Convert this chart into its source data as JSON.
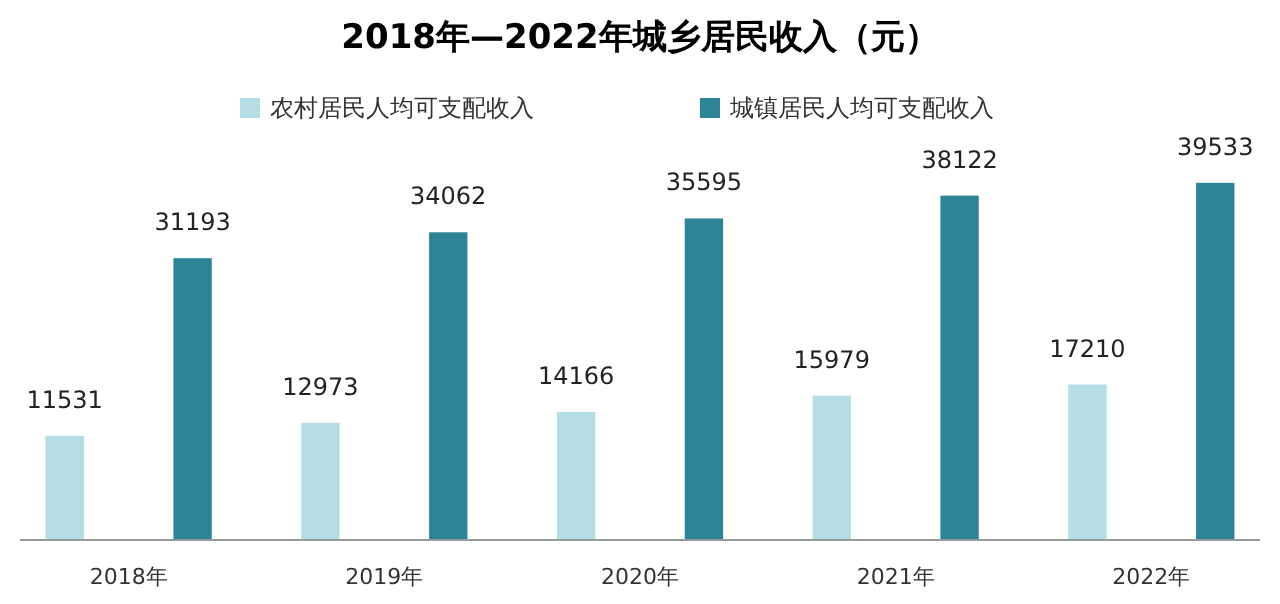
{
  "chart_data": {
    "type": "bar",
    "title": "2018年—2022年城乡居民收入（元）",
    "categories": [
      "2018年",
      "2019年",
      "2020年",
      "2021年",
      "2022年"
    ],
    "series": [
      {
        "name": "农村居民人均可支配收入",
        "color": "#b4dde6",
        "values": [
          11531,
          12973,
          14166,
          15979,
          17210
        ]
      },
      {
        "name": "城镇居民人均可支配收入",
        "color": "#2e8497",
        "values": [
          31193,
          34062,
          35595,
          38122,
          39533
        ]
      }
    ],
    "data_labels": true,
    "legend": "top"
  }
}
